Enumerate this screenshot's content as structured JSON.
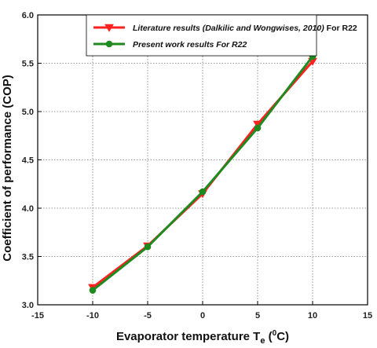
{
  "chart_data": {
    "type": "line",
    "xlabel": "Evaporator temperature T",
    "xlabel_sub": "e",
    "xlabel_unit_open": " (",
    "xlabel_unit_sup": "0",
    "xlabel_unit_close": "C)",
    "ylabel": "Coefficient of performance (COP)",
    "xlim": [
      -15,
      15
    ],
    "ylim": [
      3.0,
      6.0
    ],
    "xticks": [
      -15,
      -10,
      -5,
      0,
      5,
      10,
      15
    ],
    "yticks": [
      "3.0",
      "3.5",
      "4.0",
      "4.5",
      "5.0",
      "5.5",
      "6.0"
    ],
    "grid": true,
    "legend_position": "top-right",
    "x": [
      -10,
      -5,
      0,
      5,
      10
    ],
    "series": [
      {
        "name_italic": "Literature results (Dalkilic and Wongwises, 2010)",
        "name_rest": " For R22",
        "color": "#ff2020",
        "marker": "triangle-down",
        "values": [
          3.18,
          3.61,
          4.15,
          4.87,
          5.52
        ]
      },
      {
        "name_italic": "Present work results For R22",
        "name_rest": "",
        "color": "#1f8a1f",
        "marker": "circle",
        "values": [
          3.15,
          3.6,
          4.17,
          4.83,
          5.57
        ]
      }
    ]
  }
}
